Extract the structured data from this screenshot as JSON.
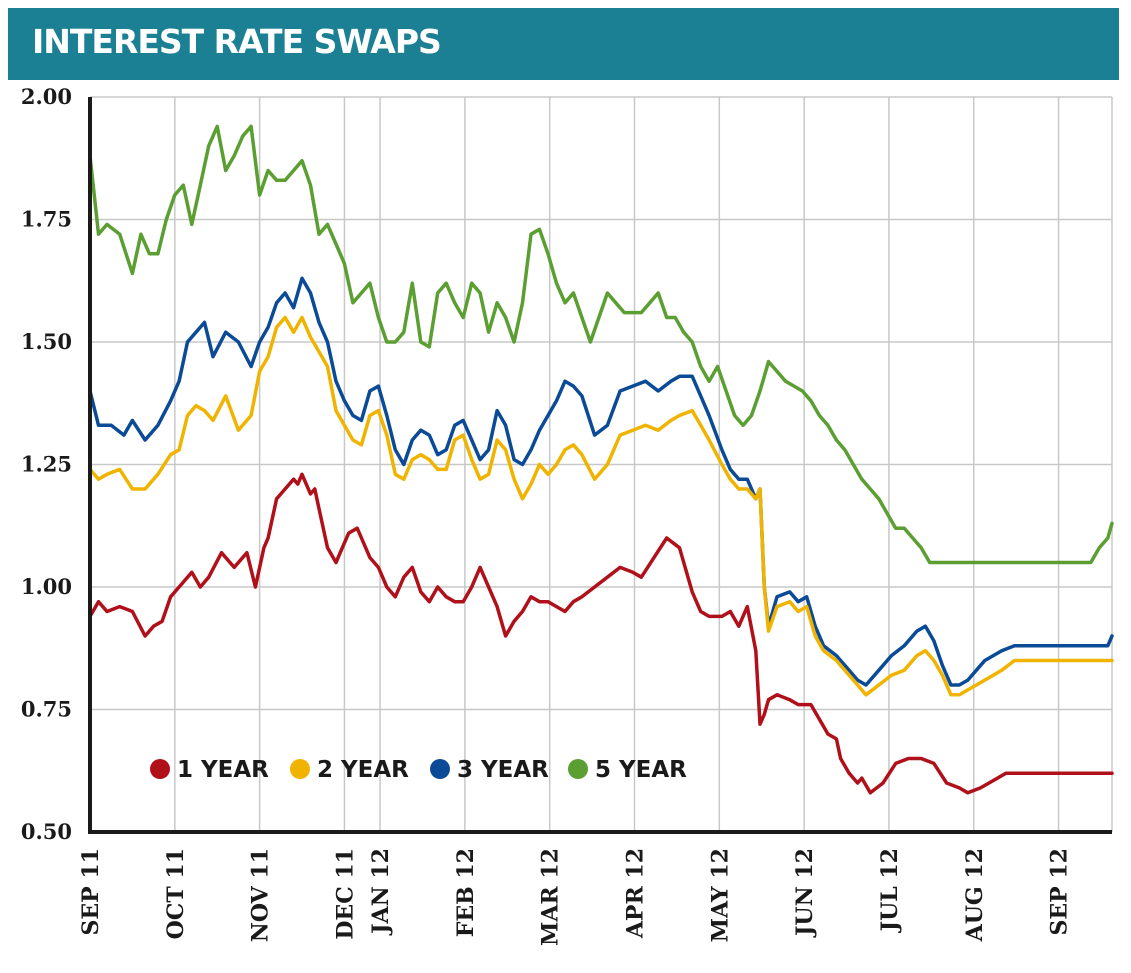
{
  "chart_data": {
    "type": "line",
    "title": "INTEREST RATE SWAPS",
    "xlabel": "",
    "ylabel": "",
    "ylim": [
      0.5,
      2.0
    ],
    "yticks": [
      "0.50",
      "0.75",
      "1.00",
      "1.25",
      "1.50",
      "1.75",
      "2.00"
    ],
    "x_tick_labels": [
      "SEP 11",
      "OCT 11",
      "NOV 11",
      "DEC 11",
      "JAN 12",
      "FEB 12",
      "MAR 12",
      "APR 12",
      "MAY 12",
      "JUN 12",
      "JUL 12",
      "AUG 12",
      "SEP 12"
    ],
    "x_tick_months": [
      0,
      1,
      2,
      3,
      3.42,
      4.42,
      5.42,
      6.42,
      7.42,
      8.42,
      9.42,
      10.42,
      11.42
    ],
    "x_range_months": [
      0,
      12.05
    ],
    "legend": "lower-left",
    "grid": true,
    "series": [
      {
        "name": "1 YEAR",
        "color": "#b0101a",
        "x": [
          0,
          0.1,
          0.2,
          0.35,
          0.5,
          0.65,
          0.75,
          0.85,
          0.95,
          1.05,
          1.1,
          1.2,
          1.3,
          1.4,
          1.55,
          1.7,
          1.85,
          1.95,
          2.05,
          2.1,
          2.2,
          2.3,
          2.4,
          2.45,
          2.5,
          2.6,
          2.65,
          2.7,
          2.8,
          2.9,
          2.95,
          3.05,
          3.15,
          3.3,
          3.4,
          3.5,
          3.6,
          3.7,
          3.8,
          3.9,
          4.0,
          4.1,
          4.2,
          4.3,
          4.4,
          4.5,
          4.6,
          4.7,
          4.8,
          4.9,
          5.0,
          5.1,
          5.2,
          5.3,
          5.4,
          5.5,
          5.6,
          5.7,
          5.8,
          5.95,
          6.1,
          6.25,
          6.4,
          6.5,
          6.65,
          6.8,
          6.95,
          7.1,
          7.2,
          7.3,
          7.45,
          7.55,
          7.65,
          7.75,
          7.85,
          7.9,
          7.95,
          8.0,
          8.1,
          8.25,
          8.35,
          8.5,
          8.6,
          8.7,
          8.8,
          8.85,
          8.95,
          9.05,
          9.1,
          9.2,
          9.35,
          9.5,
          9.65,
          9.8,
          9.95,
          10.1,
          10.25,
          10.35,
          10.5,
          10.6,
          10.7,
          10.8,
          10.95,
          11.1,
          11.2,
          11.35,
          11.5,
          11.6,
          11.7,
          11.8,
          11.9,
          12.0,
          12.05
        ],
        "values": [
          0.94,
          0.97,
          0.95,
          0.96,
          0.95,
          0.9,
          0.92,
          0.93,
          0.98,
          1.0,
          1.01,
          1.03,
          1.0,
          1.02,
          1.07,
          1.04,
          1.07,
          1.0,
          1.08,
          1.1,
          1.18,
          1.2,
          1.22,
          1.21,
          1.23,
          1.19,
          1.2,
          1.16,
          1.08,
          1.05,
          1.07,
          1.11,
          1.12,
          1.06,
          1.04,
          1.0,
          0.98,
          1.02,
          1.04,
          0.99,
          0.97,
          1.0,
          0.98,
          0.97,
          0.97,
          1.0,
          1.04,
          1.0,
          0.96,
          0.9,
          0.93,
          0.95,
          0.98,
          0.97,
          0.97,
          0.96,
          0.95,
          0.97,
          0.98,
          1.0,
          1.02,
          1.04,
          1.03,
          1.02,
          1.06,
          1.1,
          1.08,
          0.99,
          0.95,
          0.94,
          0.94,
          0.95,
          0.92,
          0.96,
          0.87,
          0.72,
          0.74,
          0.77,
          0.78,
          0.77,
          0.76,
          0.76,
          0.73,
          0.7,
          0.69,
          0.65,
          0.62,
          0.6,
          0.61,
          0.58,
          0.6,
          0.64,
          0.65,
          0.65,
          0.64,
          0.6,
          0.59,
          0.58,
          0.59,
          0.6,
          0.61,
          0.62,
          0.62,
          0.62,
          0.62,
          0.62,
          0.62,
          0.62,
          0.62,
          0.62,
          0.62,
          0.62,
          0.62
        ]
      },
      {
        "name": "2 YEAR",
        "color": "#f0b400",
        "x": [
          0,
          0.1,
          0.2,
          0.35,
          0.5,
          0.65,
          0.8,
          0.95,
          1.05,
          1.15,
          1.25,
          1.35,
          1.45,
          1.6,
          1.75,
          1.9,
          2.0,
          2.1,
          2.2,
          2.3,
          2.4,
          2.5,
          2.6,
          2.7,
          2.8,
          2.9,
          3.0,
          3.1,
          3.2,
          3.3,
          3.4,
          3.5,
          3.6,
          3.7,
          3.8,
          3.9,
          4.0,
          4.1,
          4.2,
          4.3,
          4.4,
          4.5,
          4.6,
          4.7,
          4.8,
          4.9,
          5.0,
          5.1,
          5.2,
          5.3,
          5.4,
          5.5,
          5.6,
          5.7,
          5.8,
          5.95,
          6.1,
          6.25,
          6.4,
          6.55,
          6.7,
          6.85,
          6.95,
          7.1,
          7.2,
          7.3,
          7.45,
          7.55,
          7.65,
          7.75,
          7.85,
          7.9,
          7.95,
          8.0,
          8.1,
          8.25,
          8.35,
          8.45,
          8.55,
          8.65,
          8.8,
          8.95,
          9.05,
          9.15,
          9.3,
          9.45,
          9.6,
          9.75,
          9.85,
          9.95,
          10.05,
          10.15,
          10.25,
          10.35,
          10.45,
          10.55,
          10.65,
          10.75,
          10.9,
          11.0,
          11.1,
          11.2,
          11.3,
          11.4,
          11.5,
          11.6,
          11.7,
          11.8,
          11.9,
          12.0,
          12.05
        ],
        "values": [
          1.24,
          1.22,
          1.23,
          1.24,
          1.2,
          1.2,
          1.23,
          1.27,
          1.28,
          1.35,
          1.37,
          1.36,
          1.34,
          1.39,
          1.32,
          1.35,
          1.44,
          1.47,
          1.53,
          1.55,
          1.52,
          1.55,
          1.51,
          1.48,
          1.45,
          1.36,
          1.33,
          1.3,
          1.29,
          1.35,
          1.36,
          1.31,
          1.23,
          1.22,
          1.26,
          1.27,
          1.26,
          1.24,
          1.24,
          1.3,
          1.31,
          1.26,
          1.22,
          1.23,
          1.3,
          1.28,
          1.22,
          1.18,
          1.21,
          1.25,
          1.23,
          1.25,
          1.28,
          1.29,
          1.27,
          1.22,
          1.25,
          1.31,
          1.32,
          1.33,
          1.32,
          1.34,
          1.35,
          1.36,
          1.33,
          1.3,
          1.25,
          1.22,
          1.2,
          1.2,
          1.18,
          1.2,
          1.0,
          0.91,
          0.96,
          0.97,
          0.95,
          0.96,
          0.9,
          0.87,
          0.85,
          0.82,
          0.8,
          0.78,
          0.8,
          0.82,
          0.83,
          0.86,
          0.87,
          0.85,
          0.82,
          0.78,
          0.78,
          0.79,
          0.8,
          0.81,
          0.82,
          0.83,
          0.85,
          0.85,
          0.85,
          0.85,
          0.85,
          0.85,
          0.85,
          0.85,
          0.85,
          0.85,
          0.85,
          0.85,
          0.85
        ]
      },
      {
        "name": "3 YEAR",
        "color": "#0a4a96",
        "x": [
          0,
          0.1,
          0.25,
          0.4,
          0.5,
          0.65,
          0.8,
          0.95,
          1.05,
          1.15,
          1.25,
          1.35,
          1.45,
          1.6,
          1.75,
          1.9,
          2.0,
          2.1,
          2.2,
          2.3,
          2.4,
          2.5,
          2.6,
          2.7,
          2.8,
          2.9,
          3.0,
          3.1,
          3.2,
          3.3,
          3.4,
          3.5,
          3.6,
          3.7,
          3.8,
          3.9,
          4.0,
          4.1,
          4.2,
          4.3,
          4.4,
          4.5,
          4.6,
          4.7,
          4.8,
          4.9,
          5.0,
          5.1,
          5.2,
          5.3,
          5.4,
          5.5,
          5.6,
          5.7,
          5.8,
          5.95,
          6.1,
          6.25,
          6.4,
          6.55,
          6.7,
          6.85,
          6.95,
          7.1,
          7.2,
          7.3,
          7.45,
          7.55,
          7.65,
          7.75,
          7.85,
          7.9,
          7.95,
          8.0,
          8.1,
          8.25,
          8.35,
          8.45,
          8.55,
          8.65,
          8.8,
          8.95,
          9.05,
          9.15,
          9.3,
          9.45,
          9.6,
          9.75,
          9.85,
          9.95,
          10.05,
          10.15,
          10.25,
          10.35,
          10.45,
          10.55,
          10.65,
          10.75,
          10.9,
          11.0,
          11.1,
          11.2,
          11.3,
          11.4,
          11.5,
          11.6,
          11.7,
          11.8,
          11.9,
          12.0,
          12.05
        ],
        "values": [
          1.4,
          1.33,
          1.33,
          1.31,
          1.34,
          1.3,
          1.33,
          1.38,
          1.42,
          1.5,
          1.52,
          1.54,
          1.47,
          1.52,
          1.5,
          1.45,
          1.5,
          1.53,
          1.58,
          1.6,
          1.57,
          1.63,
          1.6,
          1.54,
          1.5,
          1.42,
          1.38,
          1.35,
          1.34,
          1.4,
          1.41,
          1.35,
          1.28,
          1.25,
          1.3,
          1.32,
          1.31,
          1.27,
          1.28,
          1.33,
          1.34,
          1.3,
          1.26,
          1.28,
          1.36,
          1.33,
          1.26,
          1.25,
          1.28,
          1.32,
          1.35,
          1.38,
          1.42,
          1.41,
          1.39,
          1.31,
          1.33,
          1.4,
          1.41,
          1.42,
          1.4,
          1.42,
          1.43,
          1.43,
          1.39,
          1.35,
          1.28,
          1.24,
          1.22,
          1.22,
          1.18,
          1.2,
          1.0,
          0.92,
          0.98,
          0.99,
          0.97,
          0.98,
          0.92,
          0.88,
          0.86,
          0.83,
          0.81,
          0.8,
          0.83,
          0.86,
          0.88,
          0.91,
          0.92,
          0.89,
          0.84,
          0.8,
          0.8,
          0.81,
          0.83,
          0.85,
          0.86,
          0.87,
          0.88,
          0.88,
          0.88,
          0.88,
          0.88,
          0.88,
          0.88,
          0.88,
          0.88,
          0.88,
          0.88,
          0.88,
          0.9
        ]
      },
      {
        "name": "5 YEAR",
        "color": "#5b9e32",
        "x": [
          0,
          0.1,
          0.2,
          0.35,
          0.5,
          0.6,
          0.7,
          0.8,
          0.9,
          1.0,
          1.1,
          1.2,
          1.3,
          1.4,
          1.5,
          1.6,
          1.7,
          1.8,
          1.9,
          2.0,
          2.1,
          2.2,
          2.3,
          2.4,
          2.5,
          2.6,
          2.7,
          2.8,
          2.9,
          3.0,
          3.1,
          3.2,
          3.3,
          3.4,
          3.5,
          3.6,
          3.7,
          3.8,
          3.9,
          4.0,
          4.1,
          4.2,
          4.3,
          4.4,
          4.5,
          4.6,
          4.7,
          4.8,
          4.9,
          5.0,
          5.1,
          5.2,
          5.3,
          5.4,
          5.5,
          5.6,
          5.7,
          5.8,
          5.9,
          6.0,
          6.1,
          6.2,
          6.3,
          6.4,
          6.5,
          6.6,
          6.7,
          6.8,
          6.9,
          7.0,
          7.1,
          7.2,
          7.3,
          7.4,
          7.5,
          7.6,
          7.7,
          7.8,
          7.9,
          7.95,
          8.0,
          8.1,
          8.2,
          8.3,
          8.4,
          8.5,
          8.6,
          8.7,
          8.8,
          8.9,
          9.0,
          9.1,
          9.2,
          9.3,
          9.4,
          9.5,
          9.6,
          9.7,
          9.8,
          9.9,
          10.0,
          10.1,
          10.2,
          10.3,
          10.4,
          10.5,
          10.6,
          10.7,
          10.8,
          10.9,
          11.0,
          11.1,
          11.2,
          11.3,
          11.4,
          11.5,
          11.6,
          11.7,
          11.8,
          11.9,
          12.0,
          12.05
        ],
        "values": [
          1.88,
          1.72,
          1.74,
          1.72,
          1.64,
          1.72,
          1.68,
          1.68,
          1.75,
          1.8,
          1.82,
          1.74,
          1.82,
          1.9,
          1.94,
          1.85,
          1.88,
          1.92,
          1.94,
          1.8,
          1.85,
          1.83,
          1.83,
          1.85,
          1.87,
          1.82,
          1.72,
          1.74,
          1.7,
          1.66,
          1.58,
          1.6,
          1.62,
          1.55,
          1.5,
          1.5,
          1.52,
          1.62,
          1.5,
          1.49,
          1.6,
          1.62,
          1.58,
          1.55,
          1.62,
          1.6,
          1.52,
          1.58,
          1.55,
          1.5,
          1.58,
          1.72,
          1.73,
          1.68,
          1.62,
          1.58,
          1.6,
          1.55,
          1.5,
          1.55,
          1.6,
          1.58,
          1.56,
          1.56,
          1.56,
          1.58,
          1.6,
          1.55,
          1.55,
          1.52,
          1.5,
          1.45,
          1.42,
          1.45,
          1.4,
          1.35,
          1.33,
          1.35,
          1.4,
          1.43,
          1.46,
          1.44,
          1.42,
          1.41,
          1.4,
          1.38,
          1.35,
          1.33,
          1.3,
          1.28,
          1.25,
          1.22,
          1.2,
          1.18,
          1.15,
          1.12,
          1.12,
          1.1,
          1.08,
          1.05,
          1.05,
          1.05,
          1.05,
          1.05,
          1.05,
          1.05,
          1.05,
          1.05,
          1.05,
          1.05,
          1.05,
          1.05,
          1.05,
          1.05,
          1.05,
          1.05,
          1.05,
          1.05,
          1.05,
          1.08,
          1.1,
          1.13
        ]
      }
    ]
  }
}
